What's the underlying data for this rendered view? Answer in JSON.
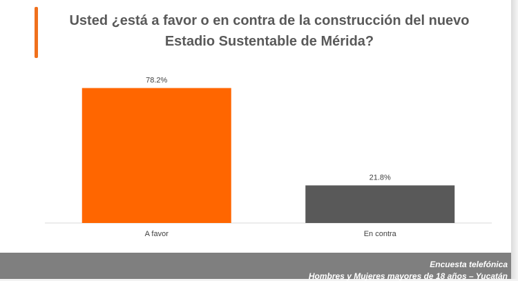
{
  "chart_data": {
    "type": "bar",
    "title": "Usted ¿está a favor o en contra de la construcción del nuevo Estadio Sustentable de Mérida?",
    "categories": [
      "A favor",
      "En contra"
    ],
    "values": [
      78.2,
      21.8
    ],
    "value_labels": [
      "78.2%",
      "21.8%"
    ],
    "colors": [
      "#ff6600",
      "#595959"
    ],
    "xlabel": "",
    "ylabel": "",
    "ylim": [
      0,
      100
    ],
    "grid": false,
    "legend": "none"
  },
  "title_lines": [
    "Usted ¿está a favor o en contra de la construcción del nuevo",
    "Estadio Sustentable de Mérida?"
  ],
  "footer": {
    "line1": "Encuesta telefónica",
    "line2": "Hombres y Mujeres mayores de 18 años – Yucatán"
  },
  "colors": {
    "accent": "#f0701c",
    "footer_bg": "#7f7f7f"
  }
}
